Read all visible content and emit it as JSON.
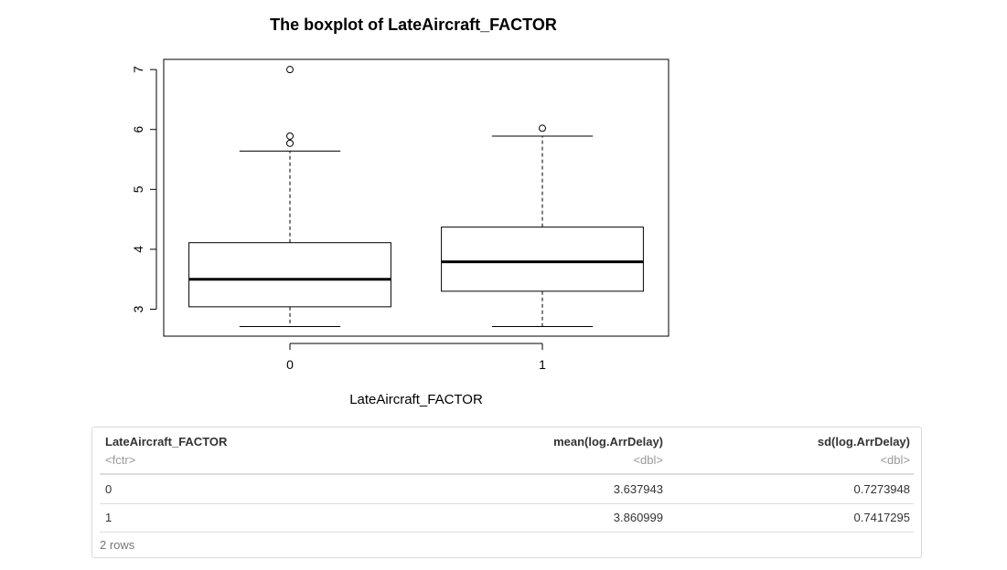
{
  "chart_data": {
    "type": "boxplot",
    "title": "The boxplot of LateAircraft_FACTOR",
    "xlabel": "LateAircraft_FACTOR",
    "ylabel": "",
    "categories": [
      "0",
      "1"
    ],
    "y_ticks": [
      "3",
      "4",
      "5",
      "6",
      "7"
    ],
    "ylim": [
      2.55,
      7.17
    ],
    "boxes": [
      {
        "group": "0",
        "whisker_low": 2.71,
        "q1": 3.04,
        "median": 3.5,
        "q3": 4.11,
        "whisker_high": 5.64,
        "outliers": [
          5.77,
          5.89,
          7.0
        ]
      },
      {
        "group": "1",
        "whisker_low": 2.71,
        "q1": 3.3,
        "median": 3.79,
        "q3": 4.37,
        "whisker_high": 5.89,
        "outliers": [
          6.02
        ]
      }
    ]
  },
  "table": {
    "columns": [
      {
        "name": "LateAircraft_FACTOR",
        "type": "<fctr>"
      },
      {
        "name": "mean(log.ArrDelay)",
        "type": "<dbl>"
      },
      {
        "name": "sd(log.ArrDelay)",
        "type": "<dbl>"
      }
    ],
    "rows": [
      [
        "0",
        "3.637943",
        "0.7273948"
      ],
      [
        "1",
        "3.860999",
        "0.7417295"
      ]
    ],
    "footer": "2 rows"
  }
}
